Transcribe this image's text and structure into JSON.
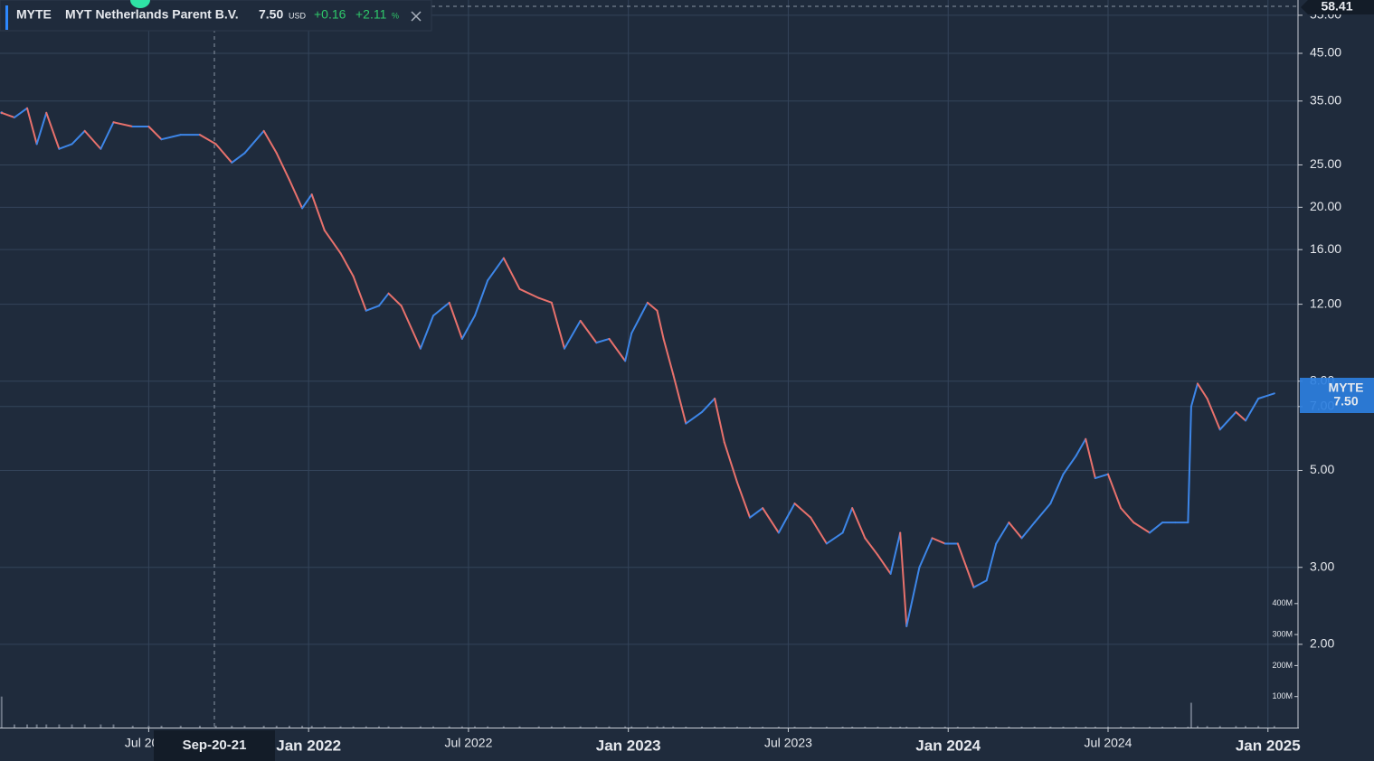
{
  "header": {
    "ticker": "MYTE",
    "company": "MYT Netherlands Parent B.V.",
    "price": "7.50",
    "currency": "USD",
    "change": "+0.16",
    "change_percent": "+2.11",
    "percent_sign": "%",
    "crosshair_date": "Sep-20-21",
    "crosshair_price": "58.41"
  },
  "chart_data": {
    "type": "line",
    "log_y": true,
    "grid": true,
    "xlim": [
      2021.035,
      2025.094
    ],
    "xticks": [
      {
        "value": 2021.5,
        "label": "Jul 2021"
      },
      {
        "value": 2022,
        "label": "Jan 2022"
      },
      {
        "value": 2022.5,
        "label": "Jul 2022"
      },
      {
        "value": 2023,
        "label": "Jan 2023"
      },
      {
        "value": 2023.5,
        "label": "Jul 2023"
      },
      {
        "value": 2024,
        "label": "Jan 2024"
      },
      {
        "value": 2024.5,
        "label": "Jul 2024"
      },
      {
        "value": 2025,
        "label": "Jan 2025"
      }
    ],
    "ylim": [
      1.29,
      59.6
    ],
    "yticks": [
      {
        "value": 2,
        "label": "2.00"
      },
      {
        "value": 3,
        "label": "3.00"
      },
      {
        "value": 5,
        "label": "5.00"
      },
      {
        "value": 7,
        "label": "7.00"
      },
      {
        "value": 8,
        "label": "8.00"
      },
      {
        "value": 12,
        "label": "12.00"
      },
      {
        "value": 16,
        "label": "16.00"
      },
      {
        "value": 20,
        "label": "20.00"
      },
      {
        "value": 25,
        "label": "25.00"
      },
      {
        "value": 35,
        "label": "35.00"
      },
      {
        "value": 45,
        "label": "45.00"
      },
      {
        "value": 55,
        "label": "55.00"
      }
    ],
    "y2lim": [
      0,
      2347000000
    ],
    "y2ticks": [
      {
        "value": 100000000,
        "label": "100M"
      },
      {
        "value": 200000000,
        "label": "200M"
      },
      {
        "value": 300000000,
        "label": "300M"
      },
      {
        "value": 400000000,
        "label": "400M"
      }
    ],
    "x": [
      2021.04,
      2021.08,
      2021.12,
      2021.15,
      2021.18,
      2021.22,
      2021.26,
      2021.3,
      2021.35,
      2021.39,
      2021.45,
      2021.5,
      2021.54,
      2021.6,
      2021.66,
      2021.71,
      2021.76,
      2021.8,
      2021.86,
      2021.9,
      2021.94,
      2021.98,
      2022.01,
      2022.05,
      2022.1,
      2022.14,
      2022.18,
      2022.22,
      2022.25,
      2022.29,
      2022.35,
      2022.39,
      2022.44,
      2022.48,
      2022.52,
      2022.56,
      2022.61,
      2022.66,
      2022.72,
      2022.76,
      2022.8,
      2022.85,
      2022.9,
      2022.94,
      2022.99,
      2023.01,
      2023.06,
      2023.09,
      2023.11,
      2023.14,
      2023.18,
      2023.23,
      2023.27,
      2023.3,
      2023.34,
      2023.38,
      2023.42,
      2023.47,
      2023.52,
      2023.57,
      2023.62,
      2023.67,
      2023.7,
      2023.74,
      2023.78,
      2023.82,
      2023.85,
      2023.87,
      2023.91,
      2023.95,
      2023.99,
      2024.03,
      2024.08,
      2024.12,
      2024.15,
      2024.19,
      2024.23,
      2024.27,
      2024.32,
      2024.36,
      2024.4,
      2024.43,
      2024.46,
      2024.5,
      2024.54,
      2024.58,
      2024.63,
      2024.67,
      2024.71,
      2024.75,
      2024.76,
      2024.78,
      2024.81,
      2024.85,
      2024.9,
      2024.93,
      2024.97,
      2025.02
    ],
    "series": [
      {
        "name": "MYTE",
        "up_color": "#3d86e8",
        "down_color": "#e8716c",
        "values": [
          32.9,
          32.1,
          33.7,
          27.9,
          32.9,
          27.2,
          27.9,
          29.9,
          27.2,
          31.3,
          30.6,
          30.6,
          28.6,
          29.3,
          29.3,
          27.9,
          25.3,
          26.6,
          29.9,
          26.6,
          23.1,
          19.9,
          21.4,
          17.7,
          15.7,
          13.9,
          11.6,
          11.9,
          12.7,
          11.9,
          9.5,
          11.3,
          12.1,
          10.0,
          11.3,
          13.6,
          15.3,
          13.0,
          12.4,
          12.1,
          9.5,
          11.0,
          9.8,
          10.0,
          8.9,
          10.3,
          12.1,
          11.6,
          10.0,
          8.3,
          6.4,
          6.8,
          7.3,
          5.8,
          4.7,
          3.9,
          4.1,
          3.6,
          4.2,
          3.9,
          3.4,
          3.6,
          4.1,
          3.5,
          3.2,
          2.9,
          3.6,
          2.2,
          3.0,
          3.5,
          3.4,
          3.4,
          2.7,
          2.8,
          3.4,
          3.8,
          3.5,
          3.8,
          4.2,
          4.9,
          5.4,
          5.9,
          4.8,
          4.9,
          4.1,
          3.8,
          3.6,
          3.8,
          3.8,
          3.8,
          7.0,
          7.9,
          7.3,
          6.2,
          6.8,
          6.5,
          7.3,
          7.5
        ]
      },
      {
        "axis": "y2",
        "color": "#6b7585",
        "values": [
          100000000,
          10000000,
          10000000,
          10000000,
          10000000,
          10000000,
          10000000,
          10000000,
          10000000,
          10000000,
          6000000,
          6000000,
          6000000,
          6000000,
          6000000,
          6000000,
          6000000,
          6000000,
          6000000,
          6000000,
          6000000,
          6000000,
          6000000,
          4000000,
          4000000,
          4000000,
          4000000,
          4000000,
          4000000,
          4000000,
          4000000,
          4000000,
          4000000,
          4000000,
          4000000,
          4000000,
          4000000,
          4000000,
          4000000,
          4000000,
          4000000,
          4000000,
          4000000,
          4000000,
          4000000,
          4000000,
          4000000,
          4000000,
          4000000,
          4000000,
          3000000,
          3000000,
          3000000,
          3000000,
          3000000,
          3000000,
          3000000,
          3000000,
          3000000,
          3000000,
          3000000,
          3000000,
          3000000,
          3000000,
          3000000,
          3000000,
          3000000,
          3000000,
          3000000,
          3000000,
          3000000,
          3000000,
          3000000,
          3000000,
          3000000,
          3000000,
          3000000,
          3000000,
          3000000,
          3000000,
          3000000,
          3000000,
          3000000,
          3000000,
          3000000,
          3000000,
          3000000,
          3000000,
          3000000,
          3000000,
          80000000,
          5000000,
          5000000,
          5000000,
          5000000,
          5000000,
          5000000,
          5000000
        ]
      }
    ]
  }
}
